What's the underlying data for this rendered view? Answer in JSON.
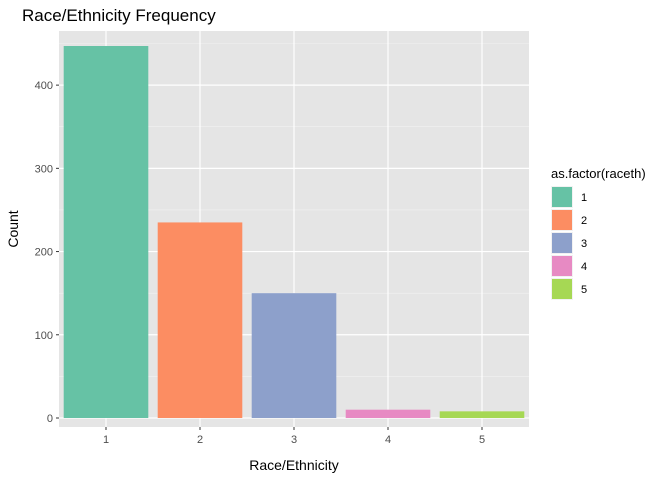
{
  "chart_data": {
    "type": "bar",
    "title": "Race/Ethnicity Frequency",
    "xlabel": "Race/Ethnicity",
    "ylabel": "Count",
    "categories": [
      "1",
      "2",
      "3",
      "4",
      "5"
    ],
    "values": [
      447,
      235,
      150,
      10,
      8
    ],
    "ylim": [
      0,
      470
    ],
    "yticks": [
      0,
      100,
      200,
      300,
      400
    ],
    "ytick_labels": [
      "0",
      "100",
      "200",
      "300",
      "400"
    ],
    "colors": [
      "#66c2a5",
      "#fc8d62",
      "#8da0cb",
      "#e78ac3",
      "#a6d854"
    ],
    "panel_background": "#e5e5e5",
    "grid": true,
    "legend": {
      "title": "as.factor(raceth)",
      "position": "right",
      "entries": [
        "1",
        "2",
        "3",
        "4",
        "5"
      ]
    }
  }
}
